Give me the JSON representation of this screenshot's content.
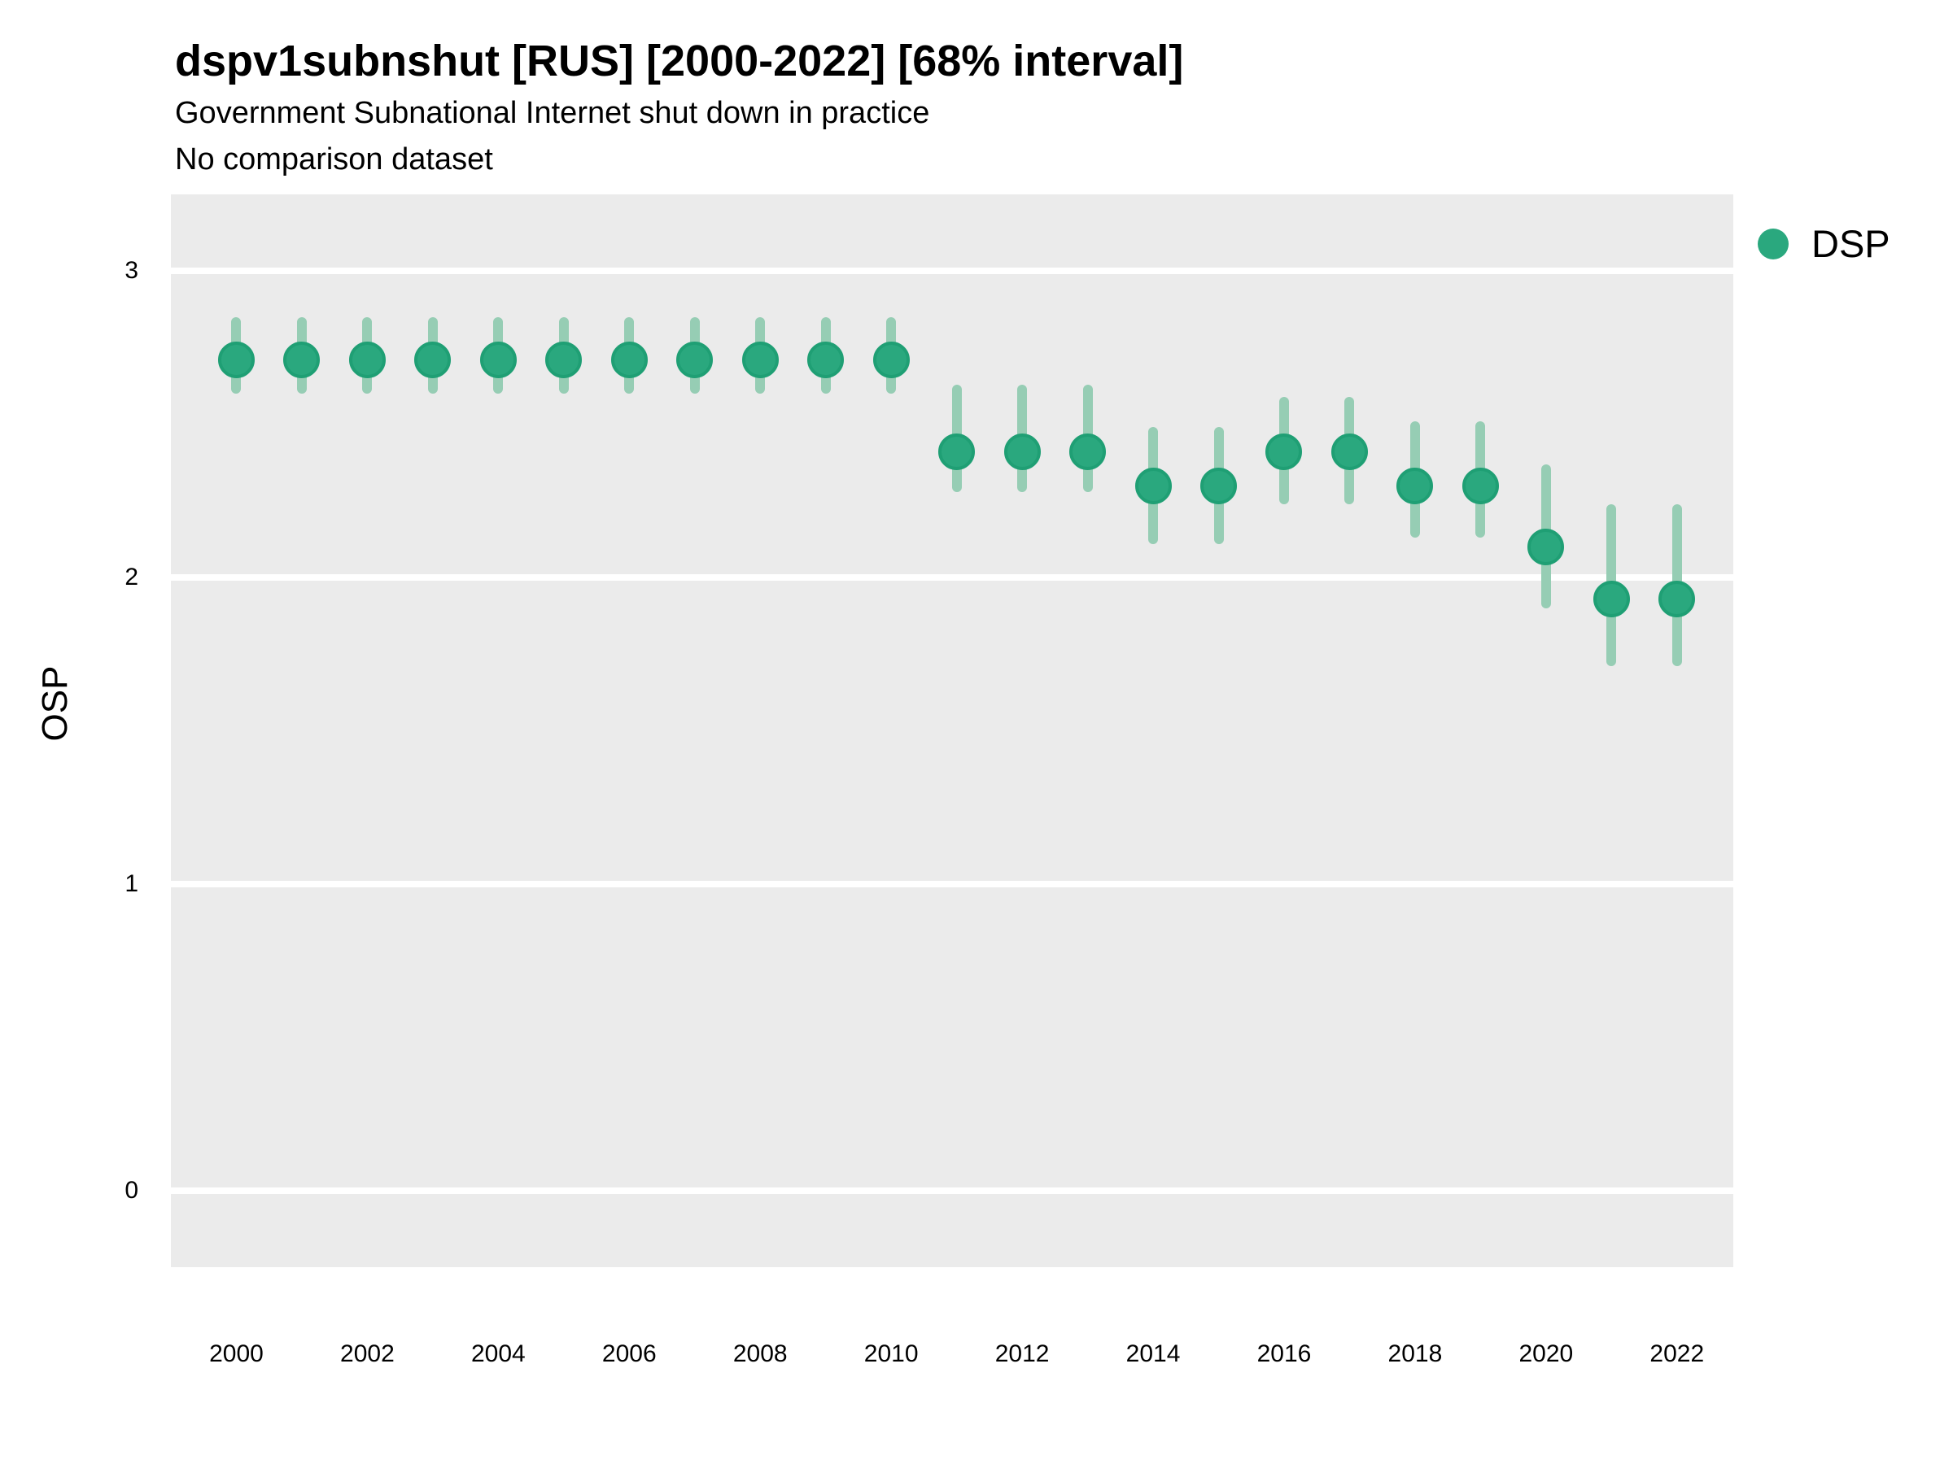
{
  "header": {
    "title": "dspv1subnshut [RUS] [2000-2022] [68% interval]",
    "subtitle": "Government Subnational Internet shut down in practice",
    "note": "No comparison dataset"
  },
  "axes": {
    "y_label": "OSP",
    "y_ticks": [
      3,
      2,
      1,
      0
    ],
    "x_ticks": [
      2000,
      2002,
      2004,
      2006,
      2008,
      2010,
      2012,
      2014,
      2016,
      2018,
      2020,
      2022
    ]
  },
  "legend": {
    "position": "right-top",
    "items": [
      {
        "label": "DSP",
        "color": "#2aa87e"
      }
    ]
  },
  "colors": {
    "point_fill": "#2aa87e",
    "point_stroke": "#1f9f74",
    "interval": "#96cdb4",
    "panel_bg": "#ebebeb",
    "gridline": "#ffffff",
    "text": "#000000"
  },
  "chart_data": {
    "type": "scatter",
    "title": "dspv1subnshut [RUS] [2000-2022] [68% interval]",
    "xlabel": "",
    "ylabel": "OSP",
    "xlim": [
      1999.0,
      2022.86
    ],
    "ylim": [
      -0.25,
      3.25
    ],
    "grid": "major-horizontal-only",
    "legend_position": "right-top",
    "series": [
      {
        "name": "DSP",
        "x": [
          2000,
          2001,
          2002,
          2003,
          2004,
          2005,
          2006,
          2007,
          2008,
          2009,
          2010,
          2011,
          2012,
          2013,
          2014,
          2015,
          2016,
          2017,
          2018,
          2019,
          2020,
          2021,
          2022
        ],
        "y": [
          2.71,
          2.71,
          2.71,
          2.71,
          2.71,
          2.71,
          2.71,
          2.71,
          2.71,
          2.71,
          2.71,
          2.41,
          2.41,
          2.41,
          2.3,
          2.3,
          2.41,
          2.41,
          2.3,
          2.3,
          2.1,
          1.93,
          1.93
        ],
        "lo": [
          2.6,
          2.6,
          2.6,
          2.6,
          2.6,
          2.6,
          2.6,
          2.6,
          2.6,
          2.6,
          2.6,
          2.28,
          2.28,
          2.28,
          2.11,
          2.11,
          2.24,
          2.24,
          2.13,
          2.13,
          1.9,
          1.71,
          1.71
        ],
        "hi": [
          2.85,
          2.85,
          2.85,
          2.85,
          2.85,
          2.85,
          2.85,
          2.85,
          2.85,
          2.85,
          2.85,
          2.63,
          2.63,
          2.63,
          2.49,
          2.49,
          2.59,
          2.59,
          2.51,
          2.51,
          2.37,
          2.24,
          2.24
        ]
      }
    ],
    "interval_label": "68% interval"
  }
}
